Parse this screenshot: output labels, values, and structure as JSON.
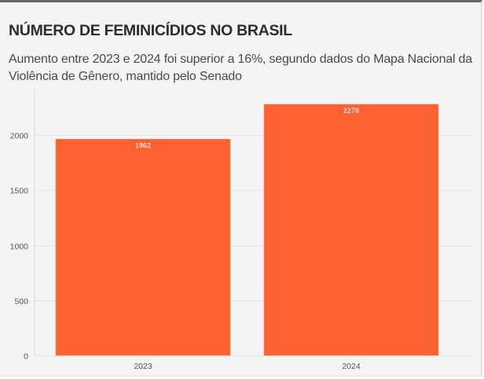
{
  "colors": {
    "bar": "#ff6230",
    "grid": "#e6e6e6",
    "axis": "#dcdcdc",
    "background": "#f4f4f4"
  },
  "chart_data": {
    "type": "bar",
    "title": "NÚMERO DE FEMINICÍDIOS NO BRASIL",
    "subtitle": "Aumento entre 2023 e 2024 foi superior a 16%, segundo dados do Mapa Nacional da Violência de Gênero, mantido pelo Senado",
    "categories": [
      "2023",
      "2024"
    ],
    "values": [
      1962,
      2278
    ],
    "data_labels": [
      "1962",
      "2278"
    ],
    "xlabel": "",
    "ylabel": "",
    "ylim": [
      0,
      2300
    ],
    "yticks": [
      0,
      500,
      1000,
      1500,
      2000
    ],
    "ytick_labels": [
      "0",
      "500",
      "1000",
      "1500",
      "2000"
    ],
    "grid": true,
    "legend": "none"
  }
}
